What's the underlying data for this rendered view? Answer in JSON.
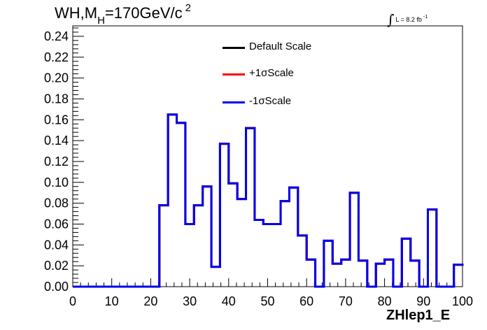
{
  "title": {
    "main": "WH,M",
    "sub": "H",
    "rest": "=170GeV/c",
    "sup": "2"
  },
  "luminosity": {
    "integral": "∫",
    "text": "L = 8.2 fb",
    "sup": "-1"
  },
  "chart_data": {
    "type": "line",
    "step": true,
    "xlabel": "ZHlep1_E",
    "ylabel": "",
    "xlim": [
      0,
      100
    ],
    "ylim": [
      0,
      0.25
    ],
    "xticks": [
      "0",
      "10",
      "20",
      "30",
      "40",
      "50",
      "60",
      "70",
      "80",
      "90",
      "100"
    ],
    "yticks": [
      "0.00",
      "0.02",
      "0.04",
      "0.06",
      "0.08",
      "0.10",
      "0.12",
      "0.14",
      "0.16",
      "0.18",
      "0.20",
      "0.22",
      "0.24"
    ],
    "grid": false,
    "legend_position": "top-center",
    "bin_edges": [
      0,
      2.22,
      4.44,
      6.67,
      8.89,
      11.11,
      13.33,
      15.56,
      17.78,
      20,
      22.22,
      24.44,
      26.67,
      28.89,
      31.11,
      33.33,
      35.56,
      37.78,
      40,
      42.22,
      44.44,
      46.67,
      48.89,
      51.11,
      53.33,
      55.56,
      57.78,
      60,
      62.22,
      64.44,
      66.67,
      68.89,
      71.11,
      73.33,
      75.56,
      77.78,
      80,
      82.22,
      84.44,
      86.67,
      88.89,
      91.11,
      93.33,
      95.56,
      97.78,
      100
    ],
    "series": [
      {
        "name": "Default Scale",
        "color": "#000000",
        "values": [
          0,
          0,
          0,
          0,
          0,
          0,
          0,
          0,
          0,
          0,
          0.078,
          0.165,
          0.157,
          0.06,
          0.078,
          0.096,
          0.019,
          0.137,
          0.099,
          0.084,
          0.152,
          0.064,
          0.06,
          0.06,
          0.082,
          0.095,
          0.049,
          0.026,
          0,
          0.044,
          0.022,
          0.026,
          0.09,
          0.025,
          0,
          0.022,
          0.026,
          0,
          0.046,
          0.025,
          0,
          0.074,
          0,
          0,
          0.021,
          0.022
        ]
      },
      {
        "name": "+1σScale",
        "color": "#ff0000",
        "values": [
          0,
          0,
          0,
          0,
          0,
          0,
          0,
          0,
          0,
          0,
          0.078,
          0.165,
          0.157,
          0.06,
          0.078,
          0.096,
          0.019,
          0.137,
          0.099,
          0.084,
          0.152,
          0.064,
          0.06,
          0.06,
          0.082,
          0.095,
          0.049,
          0.026,
          0,
          0.044,
          0.022,
          0.026,
          0.09,
          0.025,
          0,
          0.022,
          0.026,
          0,
          0.046,
          0.025,
          0,
          0.074,
          0,
          0,
          0.021,
          0.022
        ]
      },
      {
        "name": "-1σScale",
        "color": "#0000ee",
        "values": [
          0,
          0,
          0,
          0,
          0,
          0,
          0,
          0,
          0,
          0,
          0.078,
          0.165,
          0.157,
          0.06,
          0.078,
          0.096,
          0.019,
          0.137,
          0.099,
          0.084,
          0.152,
          0.064,
          0.06,
          0.06,
          0.082,
          0.095,
          0.049,
          0.026,
          0,
          0.044,
          0.022,
          0.026,
          0.09,
          0.025,
          0,
          0.022,
          0.026,
          0,
          0.046,
          0.025,
          0,
          0.074,
          0,
          0,
          0.021,
          0.022
        ]
      }
    ]
  }
}
